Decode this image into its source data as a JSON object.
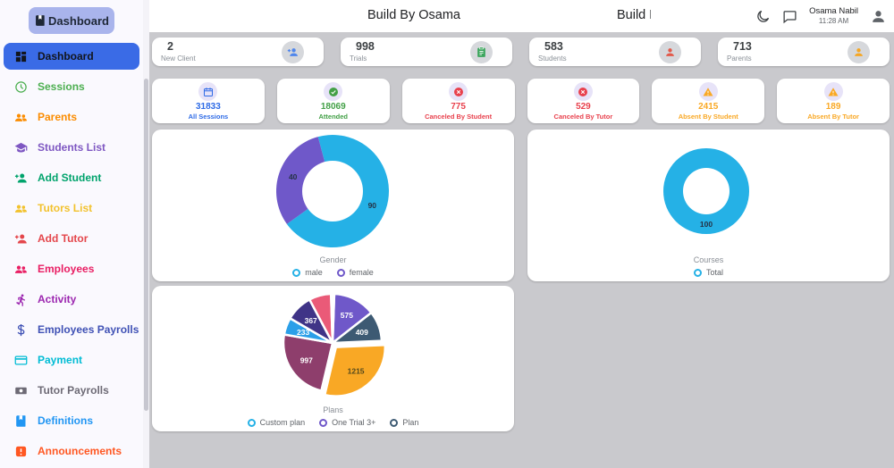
{
  "sidebar": {
    "logo": "Dashboard",
    "items": [
      {
        "label": "Dashboard",
        "icon": "grid-icon",
        "color": "#12151c",
        "active": true
      },
      {
        "label": "Sessions",
        "icon": "clock-icon",
        "color": "#4caf50"
      },
      {
        "label": "Parents",
        "icon": "people-icon",
        "color": "#fb8c00"
      },
      {
        "label": "Students List",
        "icon": "graduation-cap-icon",
        "color": "#7e57c2"
      },
      {
        "label": "Add Student",
        "icon": "person-plus-icon",
        "color": "#00a36c"
      },
      {
        "label": "Tutors List",
        "icon": "people-icon",
        "color": "#f2c22e"
      },
      {
        "label": "Add Tutor",
        "icon": "person-plus-icon",
        "color": "#e4464b"
      },
      {
        "label": "Employees",
        "icon": "people-icon",
        "color": "#e91e63"
      },
      {
        "label": "Activity",
        "icon": "runner-icon",
        "color": "#9c27b0"
      },
      {
        "label": "Employees Payrolls",
        "icon": "dollar-icon",
        "color": "#3f51b5"
      },
      {
        "label": "Payment",
        "icon": "credit-card-icon",
        "color": "#00bcd4"
      },
      {
        "label": "Tutor Payrolls",
        "icon": "banknote-icon",
        "color": "#6d6a75"
      },
      {
        "label": "Definitions",
        "icon": "book-icon",
        "color": "#2196f3"
      },
      {
        "label": "Announcements",
        "icon": "alert-icon",
        "color": "#ff5722"
      }
    ]
  },
  "header": {
    "title": "Build By Osama",
    "user": {
      "name": "Osama Nabil",
      "time": "11:28 AM"
    }
  },
  "stats_primary": [
    {
      "value": "2",
      "label": "New Client",
      "icon": "person-plus-icon",
      "icon_color": "#4f86ec"
    },
    {
      "value": "998",
      "label": "Trials",
      "icon": "clipboard-icon",
      "icon_color": "#3ba55c"
    },
    {
      "value": "583",
      "label": "Students",
      "icon": "person-icon",
      "icon_color": "#e2594a"
    },
    {
      "value": "713",
      "label": "Parents",
      "icon": "person-icon",
      "icon_color": "#f5a623"
    }
  ],
  "stats_secondary": [
    {
      "value": "31833",
      "label": "All Sessions",
      "icon": "calendar-icon",
      "color": "#2e6be6"
    },
    {
      "value": "18069",
      "label": "Attended",
      "icon": "check-circle-icon",
      "color": "#43a047"
    },
    {
      "value": "775",
      "label": "Canceled By Student",
      "icon": "x-circle-icon",
      "color": "#e8414d"
    },
    {
      "value": "529",
      "label": "Canceled By Tutor",
      "icon": "x-circle-icon",
      "color": "#e8414d"
    },
    {
      "value": "2415",
      "label": "Absent By Student",
      "icon": "warning-icon",
      "color": "#f9a825"
    },
    {
      "value": "189",
      "label": "Absent By Tutor",
      "icon": "warning-icon",
      "color": "#f9a825"
    }
  ],
  "chart_data": [
    {
      "type": "pie",
      "subtype": "donut",
      "title": "Gender",
      "legend": [
        {
          "label": "male",
          "color": "#25b1e6"
        },
        {
          "label": "female",
          "color": "#6f58c9"
        }
      ],
      "slices": [
        {
          "label": "90",
          "value": 90,
          "color": "#25b1e6"
        },
        {
          "label": "40",
          "value": 40,
          "color": "#6f58c9"
        }
      ]
    },
    {
      "type": "pie",
      "subtype": "donut",
      "title": "Courses",
      "legend": [
        {
          "label": "Total",
          "color": "#25b1e6"
        }
      ],
      "slices": [
        {
          "label": "100",
          "value": 100,
          "color": "#25b1e6"
        }
      ]
    },
    {
      "type": "pie",
      "subtype": "exploded-pie",
      "title": "Plans",
      "legend": [
        {
          "label": "Custom plan",
          "color": "#25b1e6"
        },
        {
          "label": "One Trial 3+",
          "color": "#6f58c9"
        },
        {
          "label": "Plan",
          "color": "#3d5a73"
        }
      ],
      "slices": [
        {
          "label": "575",
          "value": 575,
          "color": "#6f58c9"
        },
        {
          "label": "409",
          "value": 409,
          "color": "#3d5a73"
        },
        {
          "label": "1215",
          "value": 1215,
          "color": "#f9a825",
          "label_color": "#54491c",
          "explode": 6
        },
        {
          "label": "997",
          "value": 997,
          "color": "#8e3e6c"
        },
        {
          "label": "233",
          "value": 233,
          "color": "#2b9fe8"
        },
        {
          "label": "367",
          "value": 367,
          "color": "#3f3487"
        },
        {
          "label": "",
          "value": 300,
          "color": "#ea5a78"
        },
        {
          "label": "",
          "value": 22,
          "color": "#2aa876"
        },
        {
          "label": "",
          "value": 22,
          "color": "#3b6fd4"
        }
      ]
    }
  ]
}
